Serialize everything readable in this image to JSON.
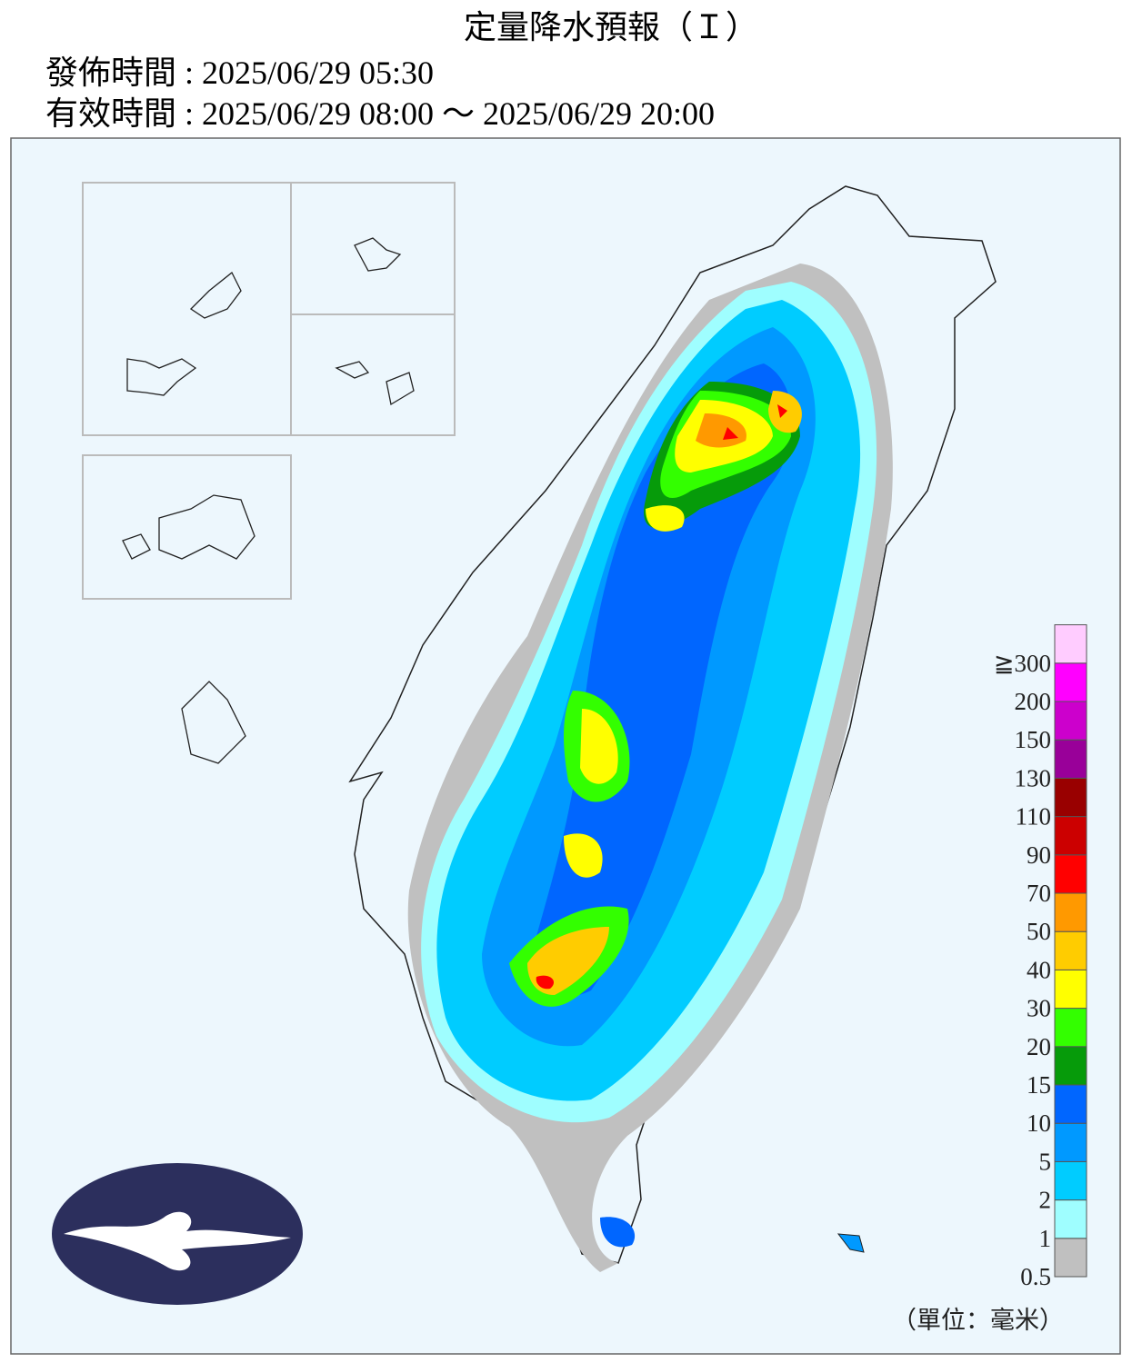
{
  "header": {
    "title": "定量降水預報（Ｉ）",
    "issued": "發佈時間 : 2025/06/29 05:30",
    "valid": "有效時間 : 2025/06/29 08:00 ～ 2025/06/29 20:00"
  },
  "legend": {
    "labels": [
      "0.5",
      "1",
      "2",
      "5",
      "10",
      "15",
      "20",
      "30",
      "40",
      "50",
      "70",
      "90",
      "110",
      "130",
      "150",
      "200",
      "≧300"
    ],
    "colors": [
      "#c0c0c0",
      "#9ffeff",
      "#00ccff",
      "#0099ff",
      "#0066ff",
      "#069b0a",
      "#33ff00",
      "#ffff00",
      "#ffcc00",
      "#ff9900",
      "#ff0000",
      "#cc0000",
      "#990000",
      "#990099",
      "#cc00cc",
      "#ff00ff",
      "#ffccff"
    ],
    "unit": "（單位：毫米）"
  }
}
